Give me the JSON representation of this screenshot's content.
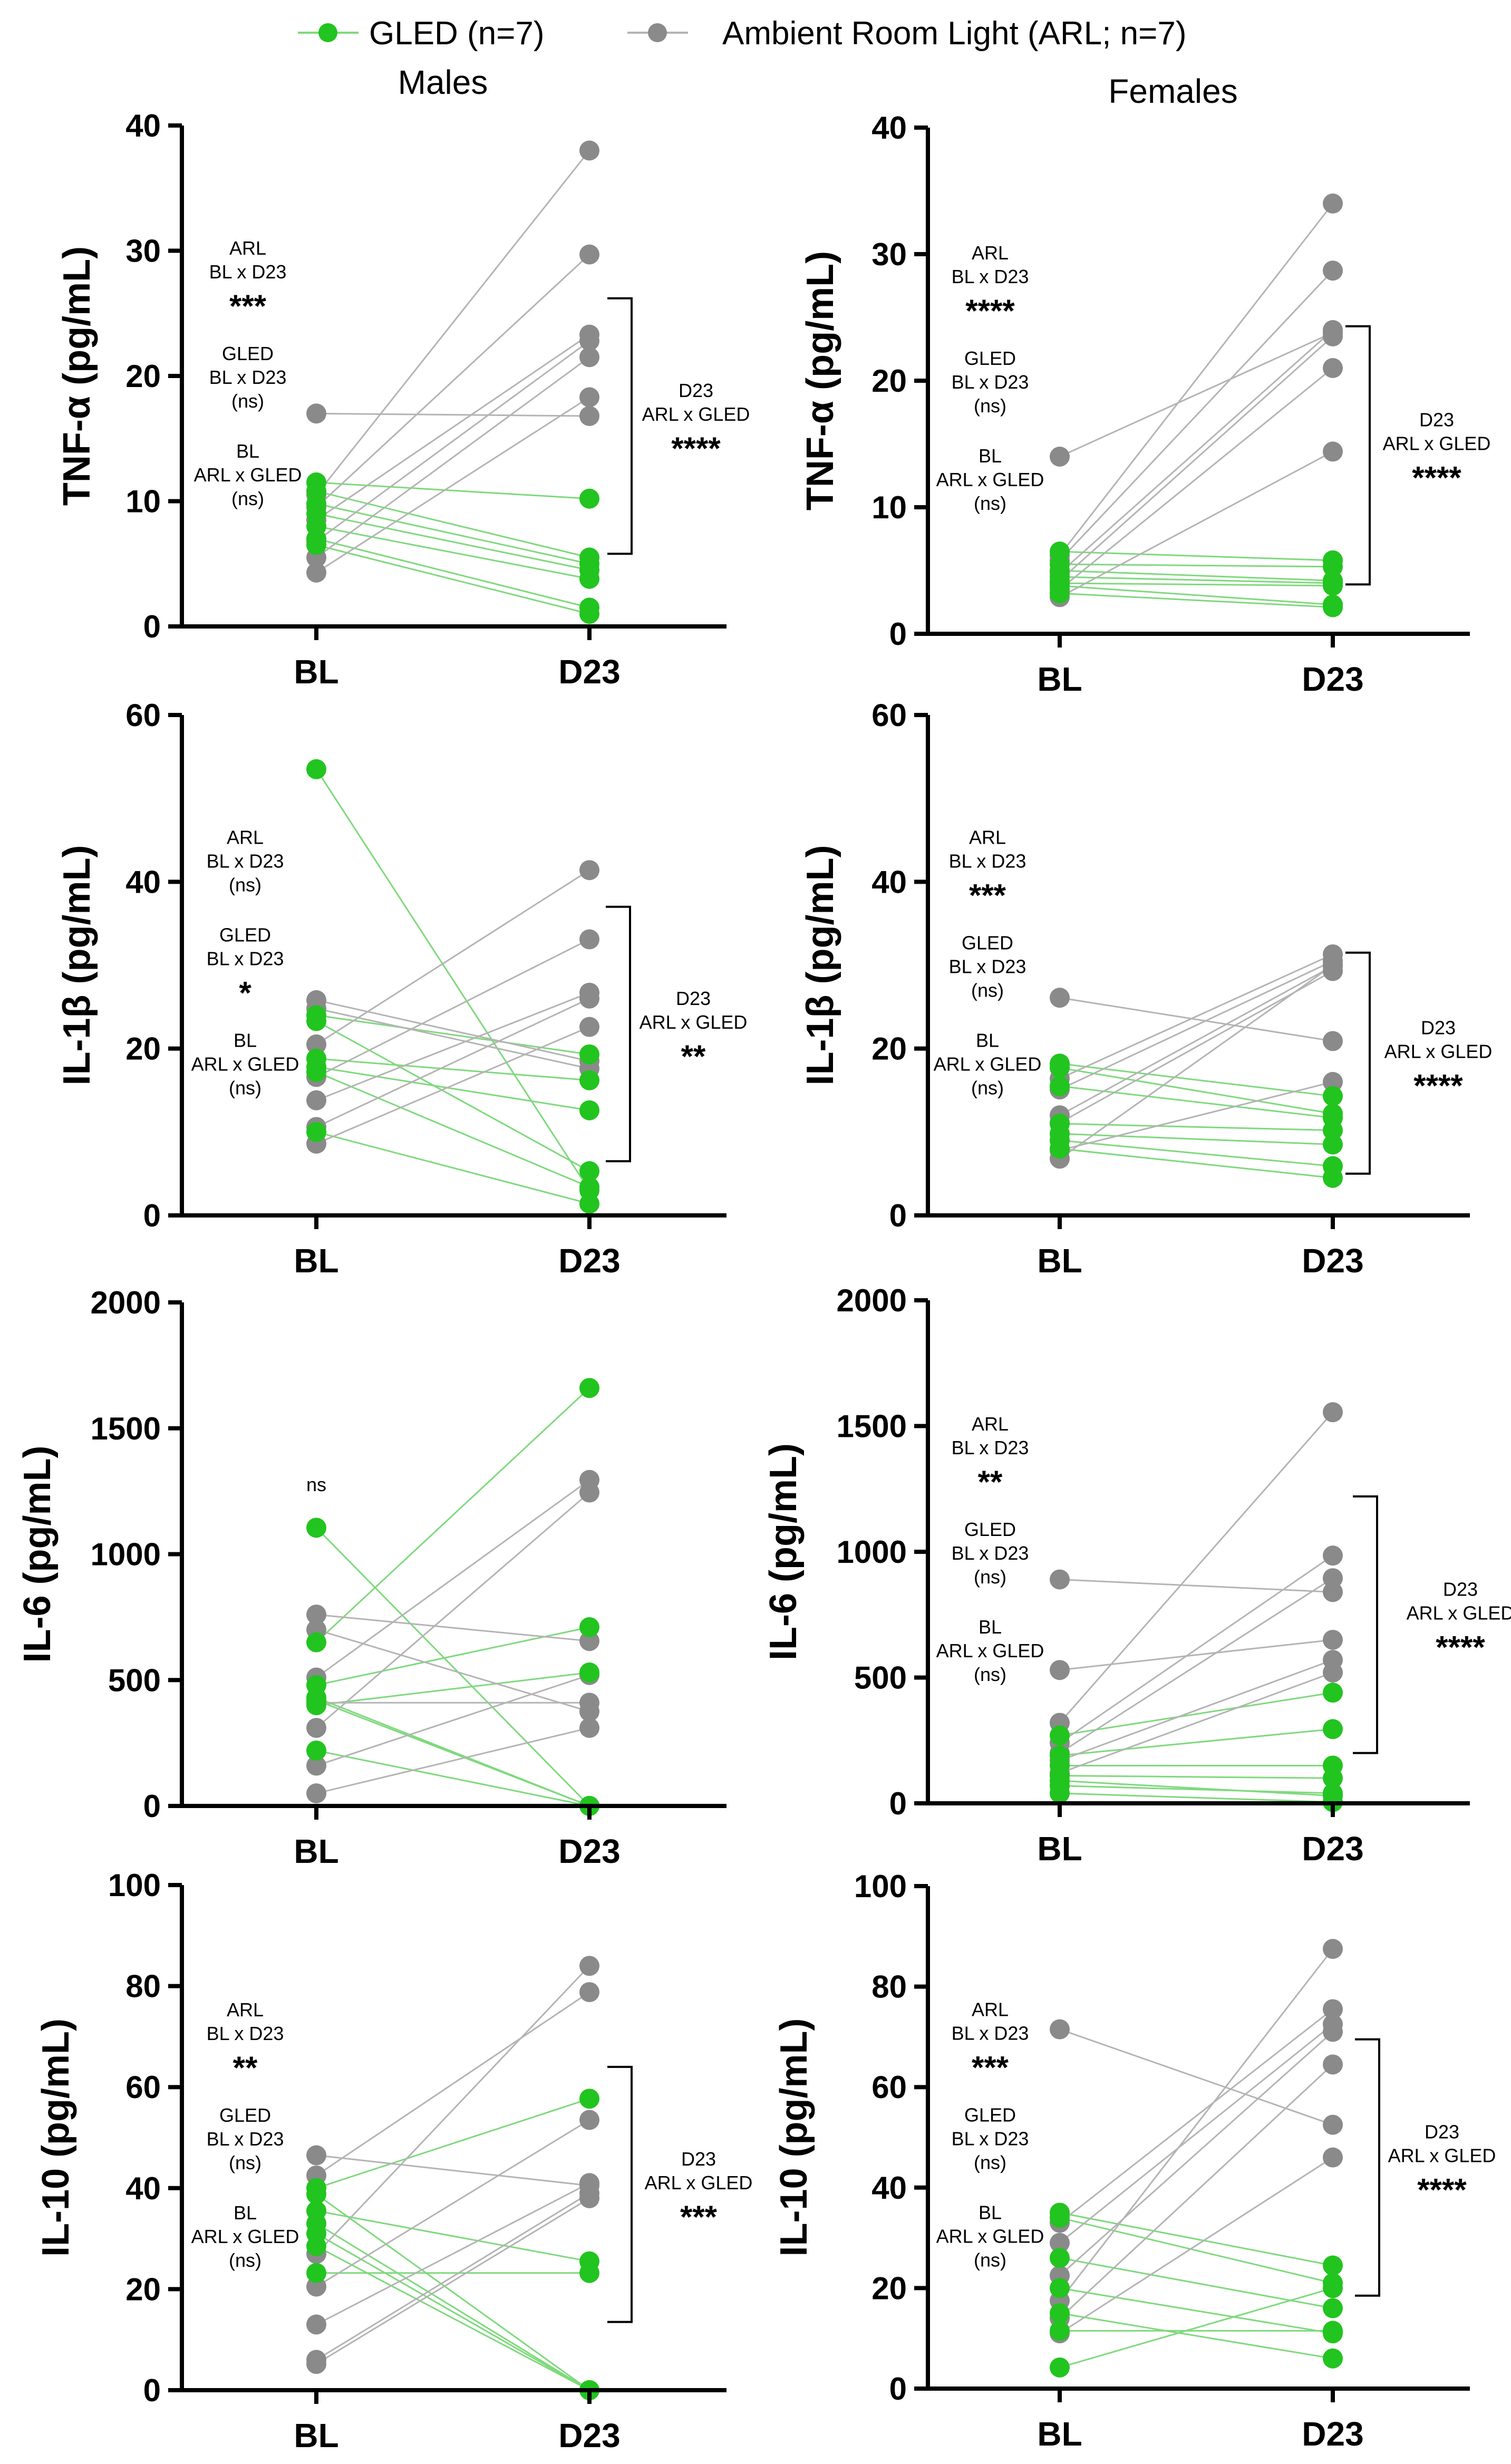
{
  "legend": [
    {
      "label": "GLED (n=7)",
      "color": "#22c41f"
    },
    {
      "label": "Ambient Room Light (ARL; n=7)",
      "color": "#8a8a8a"
    }
  ],
  "colors": {
    "gled_line": "#7fd97d",
    "arl_line": "#b4b4b4",
    "gled_point": "#22c41f",
    "arl_point": "#8a8a8a"
  },
  "column_titles": [
    "Males",
    "Females"
  ],
  "chart_data": [
    {
      "type": "scatter",
      "panel": "male-tnf",
      "sex": "Males",
      "ylabel": "TNF-α (pg/mL)",
      "ylim": [
        0,
        40
      ],
      "yticks": [
        0,
        10,
        20,
        30,
        40
      ],
      "categories": [
        "BL",
        "D23"
      ],
      "series": [
        {
          "name": "GLED",
          "pairs": [
            [
              11.5,
              10.2
            ],
            [
              10.8,
              5.5
            ],
            [
              9.8,
              5.0
            ],
            [
              9.0,
              4.5
            ],
            [
              8.0,
              3.8
            ],
            [
              7.0,
              1.5
            ],
            [
              6.5,
              1.0
            ]
          ]
        },
        {
          "name": "ARL",
          "pairs": [
            [
              17.0,
              16.8
            ],
            [
              10.5,
              38.0
            ],
            [
              9.5,
              29.7
            ],
            [
              8.5,
              23.3
            ],
            [
              6.8,
              22.8
            ],
            [
              5.5,
              21.5
            ],
            [
              4.3,
              18.3
            ]
          ]
        }
      ],
      "annotations": {
        "left": [
          {
            "lines": [
              "ARL",
              "BL x D23"
            ],
            "stars": "***"
          },
          {
            "lines": [
              "GLED",
              "BL x D23",
              "(ns)"
            ]
          },
          {
            "lines": [
              "BL",
              "ARL x GLED",
              "(ns)"
            ]
          }
        ],
        "right": {
          "lines": [
            "D23",
            "ARL x GLED"
          ],
          "stars": "****",
          "range": [
            5.8,
            26.2
          ]
        }
      }
    },
    {
      "type": "scatter",
      "panel": "female-tnf",
      "sex": "Females",
      "ylabel": "TNF-α (pg/mL)",
      "ylim": [
        0,
        40
      ],
      "yticks": [
        0,
        10,
        20,
        30,
        40
      ],
      "categories": [
        "BL",
        "D23"
      ],
      "series": [
        {
          "name": "GLED",
          "pairs": [
            [
              6.5,
              5.8
            ],
            [
              5.5,
              5.3
            ],
            [
              5.0,
              4.2
            ],
            [
              4.5,
              4.0
            ],
            [
              4.0,
              3.8
            ],
            [
              3.8,
              2.3
            ],
            [
              3.2,
              2.1
            ]
          ]
        },
        {
          "name": "ARL",
          "pairs": [
            [
              14.0,
              23.8
            ],
            [
              6.2,
              34.0
            ],
            [
              5.8,
              28.7
            ],
            [
              4.8,
              24.0
            ],
            [
              4.2,
              23.5
            ],
            [
              3.5,
              21.0
            ],
            [
              2.9,
              14.4
            ]
          ]
        }
      ],
      "annotations": {
        "left": [
          {
            "lines": [
              "ARL",
              "BL x D23"
            ],
            "stars": "****"
          },
          {
            "lines": [
              "GLED",
              "BL x D23",
              "(ns)"
            ]
          },
          {
            "lines": [
              "BL",
              "ARL x GLED",
              "(ns)"
            ]
          }
        ],
        "right": {
          "lines": [
            "D23",
            "ARL x GLED"
          ],
          "stars": "****",
          "range": [
            3.9,
            24.3
          ]
        }
      }
    },
    {
      "type": "scatter",
      "panel": "male-il1b",
      "sex": "Males",
      "ylabel": "IL-1β (pg/mL)",
      "ylim": [
        0,
        60
      ],
      "yticks": [
        0,
        20,
        40,
        60
      ],
      "categories": [
        "BL",
        "D23"
      ],
      "series": [
        {
          "name": "GLED",
          "pairs": [
            [
              53.5,
              3.0
            ],
            [
              24.0,
              19.3
            ],
            [
              23.3,
              5.3
            ],
            [
              18.8,
              16.2
            ],
            [
              17.8,
              12.6
            ],
            [
              17.2,
              3.4
            ],
            [
              10.0,
              1.4
            ]
          ]
        },
        {
          "name": "ARL",
          "pairs": [
            [
              25.8,
              18.5
            ],
            [
              24.8,
              17.6
            ],
            [
              20.5,
              41.4
            ],
            [
              16.6,
              33.1
            ],
            [
              13.8,
              26.7
            ],
            [
              10.6,
              26.0
            ],
            [
              8.6,
              22.6
            ]
          ]
        }
      ],
      "annotations": {
        "left": [
          {
            "lines": [
              "ARL",
              "BL x D23",
              "(ns)"
            ]
          },
          {
            "lines": [
              "GLED",
              "BL x D23"
            ],
            "stars": "*"
          },
          {
            "lines": [
              "BL",
              "ARL x GLED",
              "(ns)"
            ]
          }
        ],
        "right": {
          "lines": [
            "D23",
            "ARL x GLED"
          ],
          "stars": "**",
          "range": [
            6.5,
            37.0
          ]
        }
      }
    },
    {
      "type": "scatter",
      "panel": "female-il1b",
      "sex": "Females",
      "ylabel": "IL-1β (pg/mL)",
      "ylim": [
        0,
        60
      ],
      "yticks": [
        0,
        20,
        40,
        60
      ],
      "categories": [
        "BL",
        "D23"
      ],
      "series": [
        {
          "name": "GLED",
          "pairs": [
            [
              18.2,
              14.3
            ],
            [
              17.7,
              12.2
            ],
            [
              15.5,
              11.7
            ],
            [
              11.0,
              10.2
            ],
            [
              9.8,
              8.5
            ],
            [
              9.0,
              5.9
            ],
            [
              8.0,
              4.5
            ]
          ]
        },
        {
          "name": "ARL",
          "pairs": [
            [
              26.1,
              20.9
            ],
            [
              16.4,
              31.3
            ],
            [
              15.1,
              30.5
            ],
            [
              12.0,
              29.9
            ],
            [
              11.1,
              29.3
            ],
            [
              7.8,
              16.0
            ],
            [
              6.8,
              30.0
            ]
          ]
        }
      ],
      "annotations": {
        "left": [
          {
            "lines": [
              "ARL",
              "BL x D23"
            ],
            "stars": "***"
          },
          {
            "lines": [
              "GLED",
              "BL x D23",
              "(ns)"
            ]
          },
          {
            "lines": [
              "BL",
              "ARL x GLED",
              "(ns)"
            ]
          }
        ],
        "right": {
          "lines": [
            "D23",
            "ARL x GLED"
          ],
          "stars": "****",
          "range": [
            5.0,
            31.5
          ]
        }
      }
    },
    {
      "type": "scatter",
      "panel": "male-il6",
      "sex": "Males",
      "ylabel": "IL-6 (pg/mL)",
      "ylim": [
        0,
        2000
      ],
      "yticks": [
        0,
        500,
        1000,
        1500,
        2000
      ],
      "categories": [
        "BL",
        "D23"
      ],
      "series": [
        {
          "name": "GLED",
          "pairs": [
            [
              1105,
              0
            ],
            [
              650,
              1660
            ],
            [
              480,
              710
            ],
            [
              430,
              0
            ],
            [
              420,
              0
            ],
            [
              400,
              530
            ],
            [
              220,
              0
            ]
          ]
        },
        {
          "name": "ARL",
          "pairs": [
            [
              760,
              655
            ],
            [
              510,
              1295
            ],
            [
              410,
              410
            ],
            [
              310,
              1245
            ],
            [
              160,
              520
            ],
            [
              50,
              310
            ],
            [
              700,
              375
            ]
          ]
        }
      ],
      "annotations": {
        "left": [],
        "top_label": {
          "text": "ns",
          "value": 1250
        }
      }
    },
    {
      "type": "scatter",
      "panel": "female-il6",
      "sex": "Females",
      "ylabel": "IL-6 (pg/mL)",
      "ylim": [
        0,
        2000
      ],
      "yticks": [
        0,
        500,
        1000,
        1500,
        2000
      ],
      "categories": [
        "BL",
        "D23"
      ],
      "series": [
        {
          "name": "GLED",
          "pairs": [
            [
              270,
              440
            ],
            [
              190,
              295
            ],
            [
              150,
              150
            ],
            [
              110,
              100
            ],
            [
              90,
              30
            ],
            [
              70,
              40
            ],
            [
              40,
              5
            ]
          ]
        },
        {
          "name": "ARL",
          "pairs": [
            [
              890,
              840
            ],
            [
              530,
              650
            ],
            [
              320,
              1555
            ],
            [
              240,
              985
            ],
            [
              200,
              895
            ],
            [
              170,
              570
            ],
            [
              120,
              520
            ]
          ]
        }
      ],
      "annotations": {
        "left": [
          {
            "lines": [
              "ARL",
              "BL x D23"
            ],
            "stars": "**"
          },
          {
            "lines": [
              "GLED",
              "BL x D23",
              "(ns)"
            ]
          },
          {
            "lines": [
              "BL",
              "ARL x GLED",
              "(ns)"
            ]
          }
        ],
        "right": {
          "lines": [
            "D23",
            "ARL x GLED"
          ],
          "stars": "****",
          "range": [
            200,
            1220
          ]
        }
      }
    },
    {
      "type": "scatter",
      "panel": "male-il10",
      "sex": "Males",
      "ylabel": "IL-10 (pg/mL)",
      "ylim": [
        0,
        100
      ],
      "yticks": [
        0,
        20,
        40,
        60,
        80,
        100
      ],
      "categories": [
        "BL",
        "D23"
      ],
      "series": [
        {
          "name": "GLED",
          "pairs": [
            [
              40.0,
              57.7
            ],
            [
              38.8,
              0.0
            ],
            [
              35.5,
              25.5
            ],
            [
              33.0,
              0.0
            ],
            [
              31.0,
              0.0
            ],
            [
              28.5,
              0.0
            ],
            [
              23.2,
              23.2
            ]
          ]
        },
        {
          "name": "ARL",
          "pairs": [
            [
              46.5,
              40.5
            ],
            [
              42.5,
              78.8
            ],
            [
              27.0,
              84.0
            ],
            [
              20.5,
              53.5
            ],
            [
              13.0,
              41.0
            ],
            [
              6.0,
              39.0
            ],
            [
              5.2,
              38.0
            ]
          ]
        }
      ],
      "annotations": {
        "left": [
          {
            "lines": [
              "ARL",
              "BL x D23"
            ],
            "stars": "**"
          },
          {
            "lines": [
              "GLED",
              "BL x D23",
              "(ns)"
            ]
          },
          {
            "lines": [
              "BL",
              "ARL x GLED",
              "(ns)"
            ]
          }
        ],
        "right": {
          "lines": [
            "D23",
            "ARL x GLED"
          ],
          "stars": "***",
          "range": [
            13.5,
            64.0
          ]
        }
      }
    },
    {
      "type": "scatter",
      "panel": "female-il10",
      "sex": "Females",
      "ylabel": "IL-10 (pg/mL)",
      "ylim": [
        0,
        100
      ],
      "yticks": [
        0,
        20,
        40,
        60,
        80,
        100
      ],
      "categories": [
        "BL",
        "D23"
      ],
      "series": [
        {
          "name": "GLED",
          "pairs": [
            [
              35.0,
              24.5
            ],
            [
              34.0,
              21.0
            ],
            [
              26.0,
              16.0
            ],
            [
              20.0,
              11.0
            ],
            [
              15.0,
              6.0
            ],
            [
              11.5,
              11.5
            ],
            [
              4.2,
              20.0
            ]
          ]
        },
        {
          "name": "ARL",
          "pairs": [
            [
              71.5,
              52.5
            ],
            [
              33.0,
              75.5
            ],
            [
              29.0,
              72.5
            ],
            [
              22.5,
              71.0
            ],
            [
              17.5,
              87.5
            ],
            [
              14.0,
              64.5
            ],
            [
              11.0,
              46.0
            ]
          ]
        }
      ],
      "annotations": {
        "left": [
          {
            "lines": [
              "ARL",
              "BL x D23"
            ],
            "stars": "***"
          },
          {
            "lines": [
              "GLED",
              "BL x D23",
              "(ns)"
            ]
          },
          {
            "lines": [
              "BL",
              "ARL x GLED",
              "(ns)"
            ]
          }
        ],
        "right": {
          "lines": [
            "D23",
            "ARL x GLED"
          ],
          "stars": "****",
          "range": [
            18.5,
            69.5
          ]
        }
      }
    }
  ]
}
